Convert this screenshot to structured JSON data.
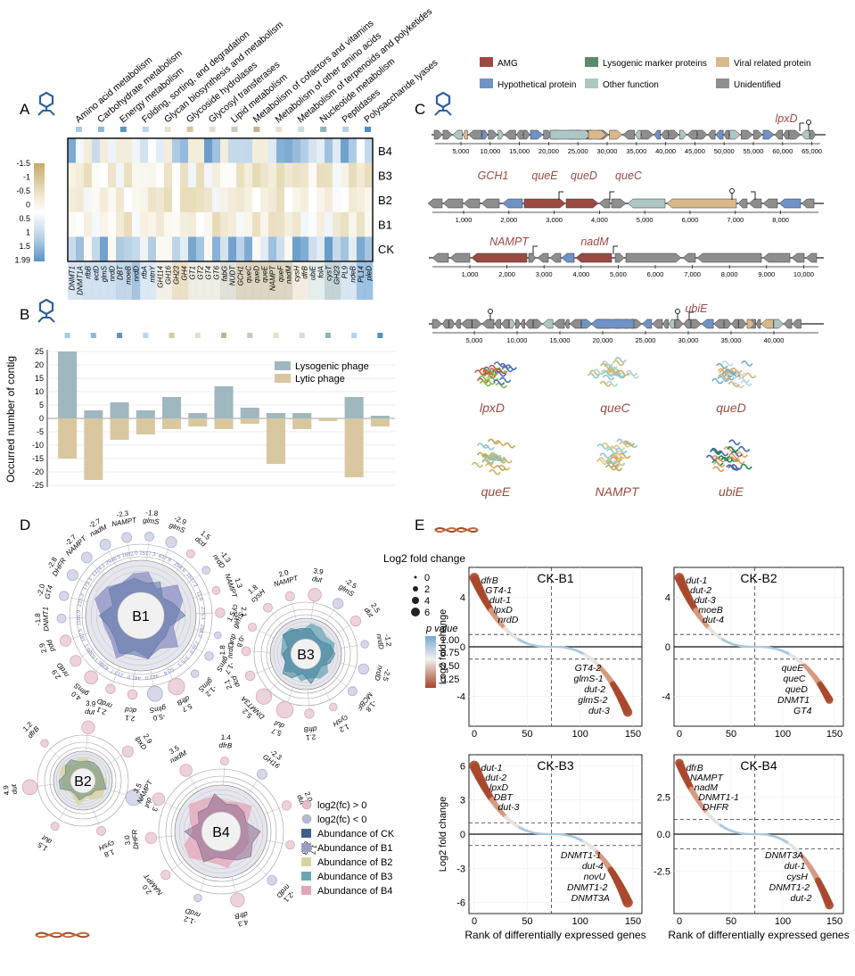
{
  "panels": {
    "a": "A",
    "b": "B",
    "c": "C",
    "d": "D",
    "e": "E"
  },
  "panel_a": {
    "categories": [
      "Amino acid metabolism",
      "Carbohydrate metabolism",
      "Energy metabolism",
      "Folding, sorting, and degradation",
      "Glycan biosynthesis and metabolism",
      "Glycoside hydrolases",
      "Glycosyl transferases",
      "Lipid metabolism",
      "Metabolism of cofactors and vitamins",
      "Metabolism of other amino acids",
      "Metabolism of terpenoids and polyketides",
      "Nucleotide metabolism",
      "Peptidases",
      "Polysaccharide lyases"
    ],
    "category_colors": [
      "#a9cbe6",
      "#8fb7d9",
      "#5d93c6",
      "#bcd7ec",
      "#e8e4d3",
      "#dcc79b",
      "#e3ded0",
      "#c9c9c0",
      "#c0b58f",
      "#eadfc8",
      "#cde2dd",
      "#93b3b8",
      "#b8d2ea",
      "#4f8fcc"
    ],
    "rows": [
      "B4",
      "B3",
      "B2",
      "B1",
      "CK"
    ],
    "legend_ticks": [
      "-1.5",
      "-1",
      "-0.5",
      "0",
      "0.5",
      "1",
      "1.5",
      "1.99"
    ],
    "genes": [
      "DNMT1",
      "DNMT1A",
      "rfbB",
      "ectD",
      "glmS",
      "nrdD",
      "DBT",
      "moeB",
      "nrdD",
      "rfbA",
      "mtnY",
      "GH114",
      "GH16",
      "GH23",
      "GH4",
      "GT1",
      "GT2",
      "GT4",
      "GT6",
      "fabG",
      "NUDT",
      "GCH1",
      "queC",
      "queD",
      "queE",
      "NAMPT",
      "queF",
      "nadM",
      "cysH",
      "dfrB",
      "ubiE",
      "folA",
      "cysT",
      "GH23",
      "PL9",
      "ndeB",
      "PL14",
      "pleD"
    ]
  },
  "panel_b": {
    "ylabel": "Occurred number of contig",
    "legend": [
      "Lysogenic phage",
      "Lytic phage"
    ],
    "ticks": [
      "25",
      "20",
      "15",
      "10",
      "5",
      "0",
      "-5",
      "-10",
      "-15",
      "-20",
      "-25"
    ],
    "dot_colors": [
      "#a9cbe6",
      "#8fb7d9",
      "#5d93c6",
      "#bcd7ec",
      "#dcc79b",
      "#e3ded0",
      "#c0b58f",
      "#c9c9c0",
      "#eadfc8",
      "#cde2dd",
      "#93b3b8",
      "#b8d2ea",
      "#4f8fcc"
    ]
  },
  "chart_data": [
    {
      "type": "bar",
      "title": "",
      "ylabel": "Occurred number of contig",
      "ylim": [
        -25,
        26
      ],
      "categories": [
        "Amino acid metabolism",
        "Carbohydrate metabolism",
        "Energy metabolism",
        "Folding, sorting, and degradation",
        "Glycoside hydrolases",
        "Glycosyl transferases",
        "Metabolism of cofactors and vitamins",
        "Lipid metabolism",
        "Metabolism of other amino acids",
        "Metabolism of terpenoids and polyketides",
        "Nucleotide metabolism",
        "Peptidases",
        "Polysaccharide lyases"
      ],
      "series": [
        {
          "name": "Lysogenic phage",
          "values": [
            25,
            3,
            6,
            3,
            8,
            2,
            12,
            4,
            2,
            2,
            0,
            8,
            1
          ]
        },
        {
          "name": "Lytic phage",
          "values": [
            -15,
            -23,
            -8,
            -6,
            -4,
            -3,
            -4,
            -2,
            -17,
            -4,
            -1,
            -22,
            -3
          ]
        }
      ]
    },
    {
      "type": "scatter",
      "title": "CK-B1",
      "xlabel": "Rank of differentially expressed genes",
      "ylabel": "Log2 fold change",
      "xlim": [
        0,
        150
      ],
      "ylim": [
        -6,
        6
      ],
      "thresholds": [
        -1,
        1
      ],
      "labels": [
        "dfrB",
        "GT4-1",
        "dut-1",
        "lpxD",
        "nrdD",
        "GT4-2",
        "glmS-1",
        "dut-2",
        "glmS-2",
        "dut-3"
      ]
    },
    {
      "type": "scatter",
      "title": "CK-B2",
      "xlabel": "Rank of differentially expressed genes",
      "ylabel": "Log2 fold change",
      "xlim": [
        0,
        150
      ],
      "ylim": [
        -6,
        6
      ],
      "thresholds": [
        -1,
        1
      ],
      "labels": [
        "dut-1",
        "dut-2",
        "dut-3",
        "moeB",
        "dut-4",
        "queE",
        "queC",
        "queD",
        "DNMT1",
        "GT4"
      ]
    },
    {
      "type": "scatter",
      "title": "CK-B3",
      "xlabel": "Rank of differentially expressed genes",
      "ylabel": "Log2 fold change",
      "xlim": [
        0,
        150
      ],
      "ylim": [
        -6.5,
        6.5
      ],
      "thresholds": [
        -1,
        1
      ],
      "labels": [
        "dut-1",
        "dut-2",
        "lpxD",
        "DBT",
        "dut-3",
        "DNMT1-1",
        "dut-4",
        "novU",
        "DNMT1-2",
        "DNMT3A"
      ]
    },
    {
      "type": "scatter",
      "title": "CK-B4",
      "xlabel": "Rank of differentially expressed genes",
      "ylabel": "Log2 fold change",
      "xlim": [
        0,
        150
      ],
      "ylim": [
        -5,
        5
      ],
      "thresholds": [
        -1,
        1
      ],
      "labels": [
        "dfrB",
        "NAMPT",
        "nadM",
        "DNMT1-1",
        "DHFR",
        "DNMT3A",
        "dut-1",
        "cysH",
        "DNMT1-2",
        "dut-2"
      ]
    }
  ],
  "panel_c": {
    "legend": [
      {
        "label": "AMG",
        "color": "#9b4a42"
      },
      {
        "label": "Lysogenic marker proteins",
        "color": "#5b8b6a"
      },
      {
        "label": "Viral related protein",
        "color": "#d9b98c"
      },
      {
        "label": "Hypothetical protein",
        "color": "#6f93c6"
      },
      {
        "label": "Other function",
        "color": "#aec7c5"
      },
      {
        "label": "Unidentified",
        "color": "#8e8e8e"
      }
    ],
    "track1": {
      "gene": "lpxD",
      "ticks": [
        "5,000",
        "10,000",
        "15,000",
        "20,000",
        "25,000",
        "30,000",
        "35,000",
        "40,000",
        "45,000",
        "50,000",
        "55,000",
        "60,000",
        "65,000"
      ]
    },
    "track2": {
      "genes": [
        "GCH1",
        "queE",
        "queD",
        "queC"
      ],
      "ticks": [
        "1,000",
        "2,000",
        "3,000",
        "4,000",
        "5,000",
        "6,000",
        "7,000",
        "8,000"
      ]
    },
    "track3": {
      "genes": [
        "NAMPT",
        "nadM"
      ],
      "ticks": [
        "1,000",
        "2,000",
        "3,000",
        "4,000",
        "5,000",
        "6,000",
        "7,000",
        "8,000",
        "9,000",
        "10,000"
      ]
    },
    "track4": {
      "gene": "ubiE",
      "ticks": [
        "5,000",
        "10,000",
        "15,000",
        "20,000",
        "25,000",
        "30,000",
        "35,000",
        "40,000"
      ]
    },
    "structures": [
      "lpxD",
      "queC",
      "queD",
      "queE",
      "NAMPT",
      "ubiE"
    ]
  },
  "panel_d": {
    "circles": [
      "B1",
      "B2",
      "B3",
      "B4"
    ],
    "legend": [
      "log2(fc) > 0",
      "log2(fc) < 0",
      "Abundance of CK",
      "Abundance of B1",
      "Abundance of B2",
      "Abundance of B3",
      "Abundance of B4"
    ],
    "legend_colors": [
      "#e6bdc9",
      "#b4b9d8",
      "#3e5d8a",
      "#9a9cc6",
      "#d8d49e",
      "#6ba7b6",
      "#e3a6b8"
    ],
    "b1_labels": [
      {
        "gene": "NAMPT",
        "fc": "-2.7"
      },
      {
        "gene": "nadM",
        "fc": "-2.7"
      },
      {
        "gene": "NAMPT",
        "fc": "-2.3"
      },
      {
        "gene": "glmS",
        "fc": "-1.8"
      },
      {
        "gene": "glmS",
        "fc": "-2.9"
      },
      {
        "gene": "dcd",
        "fc": "1.5"
      },
      {
        "gene": "nrdD",
        "fc": "-1.3"
      },
      {
        "gene": "NAMPT",
        "fc": "1.3"
      },
      {
        "gene": "cysH",
        "fc": "2.1"
      },
      {
        "gene": "dut",
        "fc": "-0.8"
      },
      {
        "gene": "glmS",
        "fc": "-1.7"
      },
      {
        "gene": "glmS",
        "fc": "-1.2"
      },
      {
        "gene": "dfrB",
        "fc": "5.7"
      },
      {
        "gene": "glmS",
        "fc": "-5.0"
      },
      {
        "gene": "dcd",
        "fc": "2.1"
      },
      {
        "gene": "nrdD",
        "fc": "2.1"
      },
      {
        "gene": "glmS",
        "fc": "4.0"
      },
      {
        "gene": "nrdD",
        "fc": "2.9"
      },
      {
        "gene": "pdd",
        "fc": "2.9"
      },
      {
        "gene": "DNMT1",
        "fc": "-1.8"
      },
      {
        "gene": "GT4",
        "fc": "-2.0"
      },
      {
        "gene": "DHFR",
        "fc": "-2.8"
      }
    ],
    "b1_values": [
      "1324.1",
      "2946.5",
      "1662.0",
      "1517.3",
      "437.8",
      "254.6",
      "1647.2",
      "11.6",
      "275.1",
      "294.0",
      "233.0",
      "375.1",
      "50.4",
      "442.0",
      "441.0",
      "213.7",
      "4386.1",
      "6386.1",
      "182.5",
      "1160.9",
      "215.3",
      "173.3"
    ],
    "b2_labels": [
      {
        "gene": "dut",
        "fc": "3.9"
      },
      {
        "gene": "lpxD",
        "fc": "2.9"
      },
      {
        "gene": "dut",
        "fc": "-5.3"
      },
      {
        "gene": "cysH",
        "fc": "1.8"
      },
      {
        "gene": "dut",
        "fc": "1.5"
      },
      {
        "gene": "dut",
        "fc": "4.9"
      },
      {
        "gene": "dfrB",
        "fc": "1.2"
      }
    ],
    "b3_labels": [
      {
        "gene": "dut",
        "fc": "3.9"
      },
      {
        "gene": "glmS",
        "fc": "-2.5"
      },
      {
        "gene": "dut",
        "fc": "2.5"
      },
      {
        "gene": "nrdD",
        "fc": "-1.2"
      },
      {
        "gene": "nrdD",
        "fc": "-2.5"
      },
      {
        "gene": "MCBF",
        "fc": "-1.8"
      },
      {
        "gene": "cysH",
        "fc": "1.2"
      },
      {
        "gene": "dfrB",
        "fc": "2.1"
      },
      {
        "gene": "dut",
        "fc": "5.7"
      },
      {
        "gene": "DNMT3A",
        "fc": "5.2"
      },
      {
        "gene": "dcd",
        "fc": "2.1"
      },
      {
        "gene": "nrdD",
        "fc": "1.8"
      },
      {
        "gene": "glmS",
        "fc": "1.5"
      },
      {
        "gene": "cysH",
        "fc": "1.8"
      },
      {
        "gene": "NAMPT",
        "fc": "2.0"
      }
    ],
    "b4_labels": [
      {
        "gene": "dfrB",
        "fc": "1.4"
      },
      {
        "gene": "GH16",
        "fc": "-2.3"
      },
      {
        "gene": "dut",
        "fc": "2.0"
      },
      {
        "gene": "dfrB",
        "fc": "1.7"
      },
      {
        "gene": "nrdD",
        "fc": "-2.1"
      },
      {
        "gene": "dfrB",
        "fc": "4.3"
      },
      {
        "gene": "nrdD",
        "fc": "-1.2"
      },
      {
        "gene": "NAMPT",
        "fc": "2.0"
      },
      {
        "gene": "DHFR",
        "fc": "3.0"
      },
      {
        "gene": "NAMPT",
        "fc": "3.5"
      },
      {
        "gene": "nadM",
        "fc": "3.5"
      }
    ]
  },
  "panel_e": {
    "size_legend_title": "Log2 fold change",
    "size_legend": [
      "0",
      "2",
      "4",
      "6"
    ],
    "p_legend_title": "p value",
    "p_legend": [
      "1.00",
      "0.75",
      "0.50",
      "0.25"
    ]
  }
}
